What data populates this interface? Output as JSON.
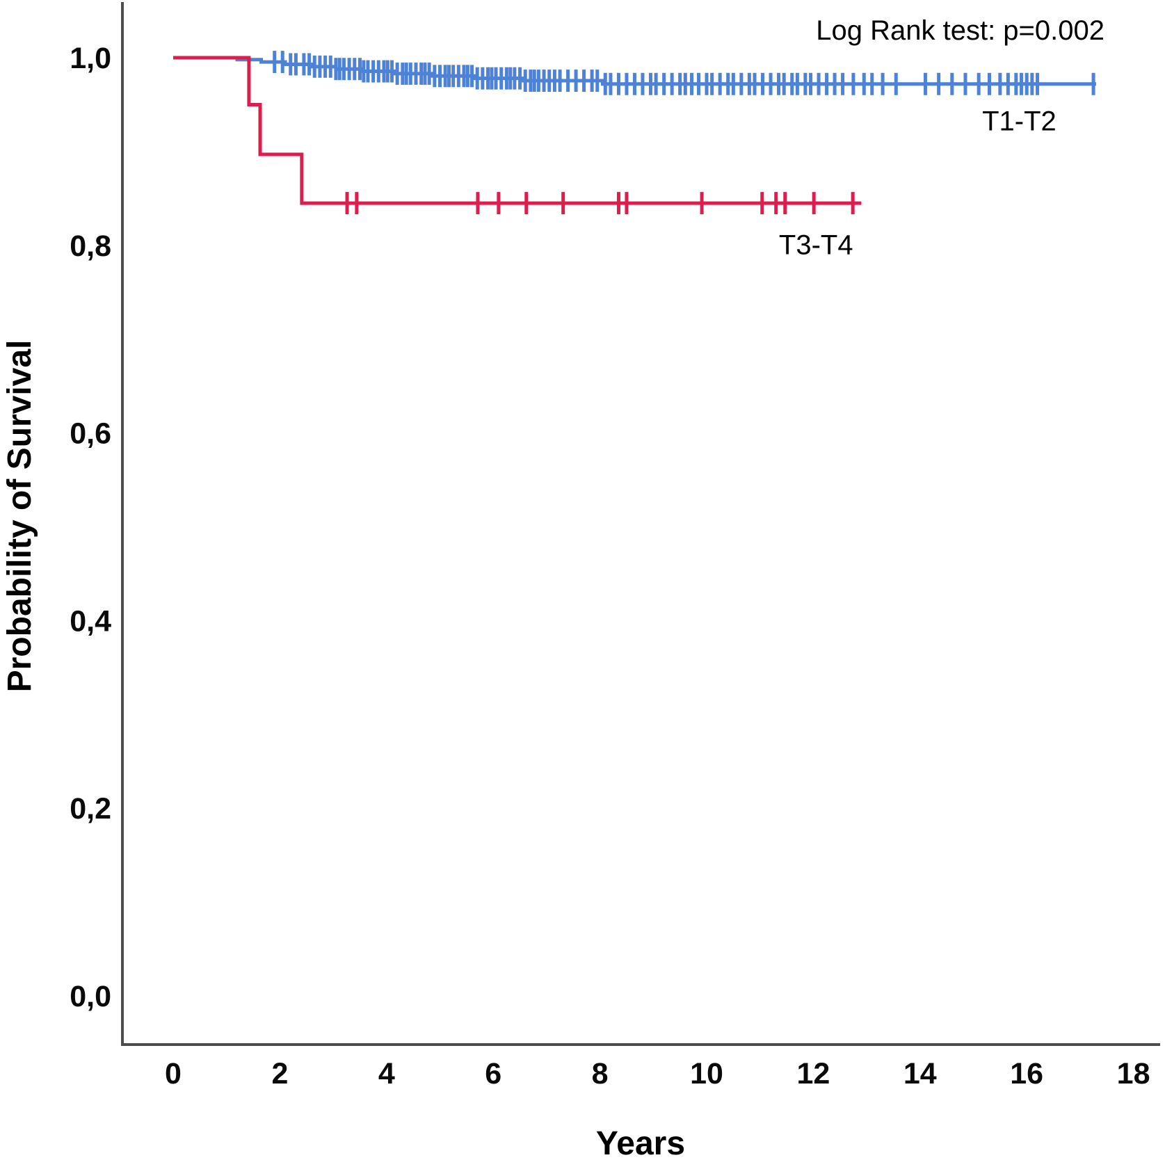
{
  "chart_data": {
    "type": "line",
    "subtype": "kaplan-meier-step",
    "title": "",
    "annotation": "Log Rank test: p=0.002",
    "xlabel": "Years",
    "ylabel": "Probability of Survival",
    "xlim": [
      0,
      18
    ],
    "ylim": [
      0.0,
      1.0
    ],
    "grid": false,
    "legend_position": "inline-labels",
    "x_ticks": [
      {
        "value": 0,
        "label": "0"
      },
      {
        "value": 2,
        "label": "2"
      },
      {
        "value": 4,
        "label": "4"
      },
      {
        "value": 6,
        "label": "6"
      },
      {
        "value": 8,
        "label": "8"
      },
      {
        "value": 10,
        "label": "10"
      },
      {
        "value": 12,
        "label": "12"
      },
      {
        "value": 14,
        "label": "14"
      },
      {
        "value": 16,
        "label": "16"
      },
      {
        "value": 18,
        "label": "18"
      }
    ],
    "y_ticks": [
      {
        "value": 0.0,
        "label": "0,0"
      },
      {
        "value": 0.2,
        "label": "0,2"
      },
      {
        "value": 0.4,
        "label": "0,4"
      },
      {
        "value": 0.6,
        "label": "0,6"
      },
      {
        "value": 0.8,
        "label": "0,8"
      },
      {
        "value": 1.0,
        "label": "1,0"
      }
    ],
    "series": [
      {
        "name": "T1-T2",
        "color": "#4d82d6",
        "start": [
          0,
          1.0
        ],
        "steps": [
          [
            1.2,
            0.998
          ],
          [
            1.65,
            0.9955
          ],
          [
            2.1,
            0.993
          ],
          [
            2.6,
            0.9905
          ],
          [
            3.05,
            0.988
          ],
          [
            3.55,
            0.9855
          ],
          [
            4.15,
            0.983
          ],
          [
            4.85,
            0.9805
          ],
          [
            5.65,
            0.978
          ],
          [
            6.55,
            0.9755
          ],
          [
            8.05,
            0.972
          ]
        ],
        "end_x": 17.3,
        "censor_x": [
          1.9,
          2.05,
          2.2,
          2.3,
          2.45,
          2.55,
          2.65,
          2.75,
          2.85,
          2.95,
          3.05,
          3.12,
          3.2,
          3.3,
          3.4,
          3.5,
          3.57,
          3.65,
          3.75,
          3.85,
          3.95,
          4.02,
          4.1,
          4.2,
          4.3,
          4.37,
          4.45,
          4.55,
          4.65,
          4.72,
          4.8,
          4.9,
          5.0,
          5.1,
          5.17,
          5.25,
          5.35,
          5.45,
          5.52,
          5.6,
          5.7,
          5.8,
          5.9,
          5.97,
          6.05,
          6.15,
          6.25,
          6.32,
          6.4,
          6.5,
          6.6,
          6.7,
          6.77,
          6.85,
          6.95,
          7.05,
          7.15,
          7.25,
          7.4,
          7.55,
          7.7,
          7.85,
          7.95,
          8.1,
          8.2,
          8.35,
          8.5,
          8.65,
          8.8,
          8.95,
          9.05,
          9.2,
          9.35,
          9.5,
          9.6,
          9.72,
          9.85,
          10.0,
          10.1,
          10.25,
          10.4,
          10.5,
          10.65,
          10.8,
          10.9,
          11.05,
          11.2,
          11.35,
          11.45,
          11.6,
          11.7,
          11.85,
          11.95,
          12.1,
          12.25,
          12.4,
          12.55,
          12.75,
          12.95,
          13.1,
          13.3,
          13.55,
          14.1,
          14.35,
          14.6,
          14.85,
          15.1,
          15.3,
          15.5,
          15.65,
          15.8,
          15.9,
          16.0,
          16.1,
          16.2,
          17.25
        ],
        "label": {
          "text": "T1-T2",
          "x": 15.86,
          "y": 0.933
        }
      },
      {
        "name": "T3-T4",
        "color": "#dc1e4e",
        "start": [
          0,
          1.0
        ],
        "steps": [
          [
            1.42,
            0.95
          ],
          [
            1.63,
            0.897
          ],
          [
            2.41,
            0.845
          ]
        ],
        "end_x": 12.9,
        "censor_x": [
          3.26,
          3.44,
          5.71,
          6.1,
          6.62,
          7.31,
          8.35,
          8.5,
          9.91,
          11.04,
          11.3,
          11.47,
          12.01,
          12.74
        ],
        "label": {
          "text": "T3-T4",
          "x": 12.05,
          "y": 0.801
        }
      }
    ]
  }
}
